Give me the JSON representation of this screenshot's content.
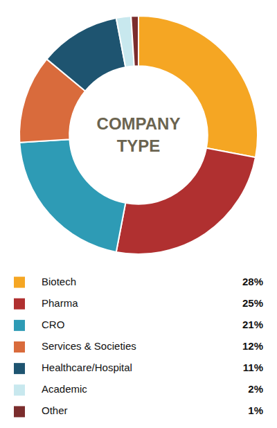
{
  "chart_data": {
    "type": "donut",
    "title": "COMPANY",
    "subtitle": "TYPE",
    "categories": [
      "Biotech",
      "Pharma",
      "CRO",
      "Services & Societies",
      "Healthcare/Hospital",
      "Academic",
      "Other"
    ],
    "values": [
      28,
      25,
      21,
      12,
      11,
      2,
      1
    ],
    "value_labels": [
      "28%",
      "25%",
      "21%",
      "12%",
      "11%",
      "2%",
      "1%"
    ],
    "colors": [
      "#F5A623",
      "#B03030",
      "#2E9BB5",
      "#D96B3C",
      "#1E5470",
      "#C8E8EE",
      "#7B2D2D"
    ]
  }
}
